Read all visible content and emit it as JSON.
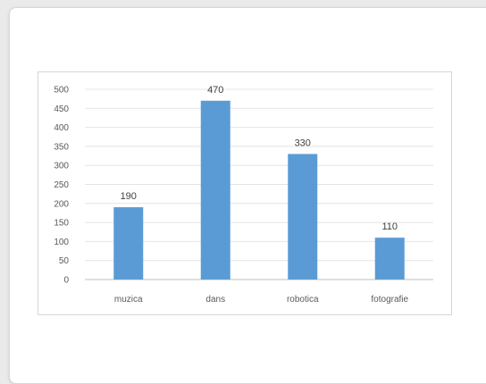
{
  "chart_data": {
    "type": "bar",
    "categories": [
      "muzica",
      "dans",
      "robotica",
      "fotografie"
    ],
    "values": [
      190,
      470,
      330,
      110
    ],
    "data_labels": [
      "190",
      "470",
      "330",
      "110"
    ],
    "y_ticks": [
      0,
      50,
      100,
      150,
      200,
      250,
      300,
      350,
      400,
      450,
      500
    ],
    "ylim": [
      0,
      500
    ],
    "title": "",
    "xlabel": "",
    "ylabel": "",
    "grid": true,
    "legend": "none",
    "bar_color": "#5b9bd5",
    "grid_color": "#e4e4e4"
  }
}
